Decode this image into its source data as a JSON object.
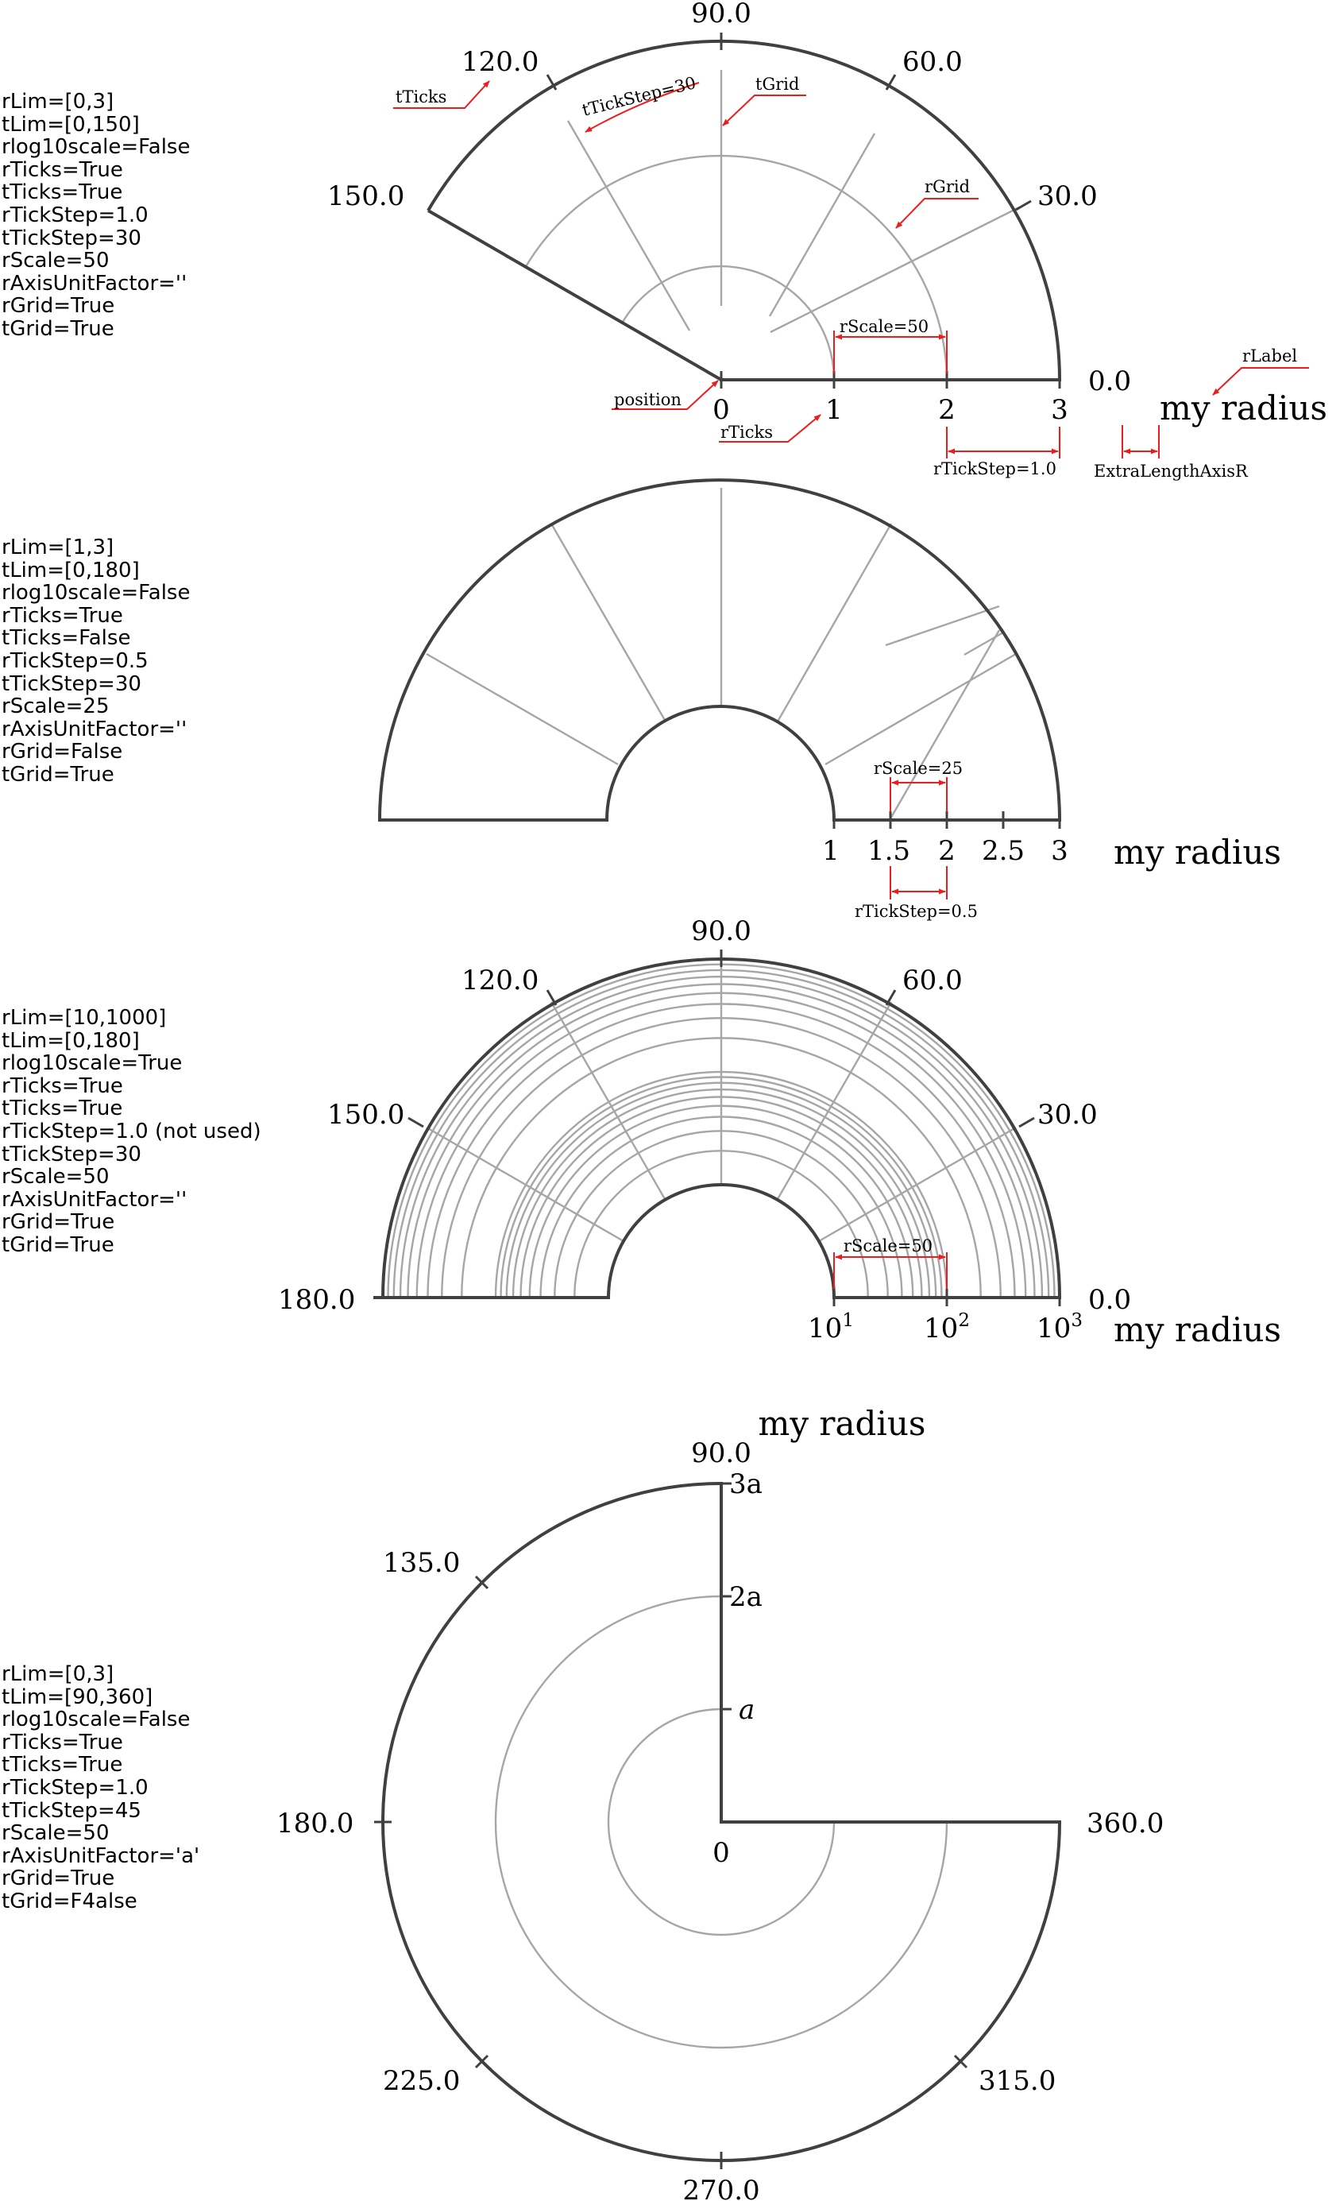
{
  "panels": [
    {
      "params": [
        "rLim=[0,3]",
        "tLim=[0,150]",
        "rlog10scale=False",
        "rTicks=True",
        "tTicks=True",
        "rTickStep=1.0",
        "tTickStep=30",
        "rScale=50",
        "rAxisUnitFactor=''",
        "rGrid=True",
        "tGrid=True"
      ],
      "r_tick_labels": [
        "0",
        "1",
        "2",
        "3"
      ],
      "t_tick_labels": [
        "0.0",
        "30.0",
        "60.0",
        "90.0",
        "120.0",
        "150.0"
      ],
      "r_label": "my radius",
      "annotations": [
        "tTicks",
        "tTickStep=30",
        "tGrid",
        "rGrid",
        "rScale=50",
        "position",
        "rTicks",
        "rTickStep=1.0",
        "rLabel",
        "ExtraLengthAxisR"
      ]
    },
    {
      "params": [
        "rLim=[1,3]",
        "tLim=[0,180]",
        "rlog10scale=False",
        "rTicks=True",
        "tTicks=False",
        "rTickStep=0.5",
        "tTickStep=30",
        "rScale=25",
        "rAxisUnitFactor=''",
        "rGrid=False",
        "tGrid=True"
      ],
      "r_tick_labels": [
        "1",
        "1.5",
        "2",
        "2.5",
        "3"
      ],
      "r_label": "my radius",
      "annotations": [
        "rScale=25",
        "rTickStep=0.5"
      ]
    },
    {
      "params": [
        "rLim=[10,1000]",
        "tLim=[0,180]",
        "rlog10scale=True",
        "rTicks=True",
        "tTicks=True",
        "rTickStep=1.0 (not used)",
        "tTickStep=30",
        "rScale=50",
        "rAxisUnitFactor=''",
        "rGrid=True",
        "tGrid=True"
      ],
      "r_tick_bases": [
        "10",
        "10",
        "10"
      ],
      "r_tick_exponents": [
        "1",
        "2",
        "3"
      ],
      "t_tick_labels": [
        "0.0",
        "30.0",
        "60.0",
        "90.0",
        "120.0",
        "150.0",
        "180.0"
      ],
      "r_label": "my radius",
      "annotations": [
        "rScale=50"
      ]
    },
    {
      "params": [
        "rLim=[0,3]",
        "tLim=[90,360]",
        "rlog10scale=False",
        "rTicks=True",
        "tTicks=True",
        "rTickStep=1.0",
        "tTickStep=45",
        "rScale=50",
        "rAxisUnitFactor='a'",
        "rGrid=True",
        "tGrid=F4alse"
      ],
      "r_tick_labels": [
        "0",
        "a",
        "2a",
        "3a"
      ],
      "t_tick_labels": [
        "90.0",
        "135.0",
        "180.0",
        "225.0",
        "270.0",
        "315.0",
        "360.0"
      ],
      "r_label": "my radius"
    }
  ]
}
